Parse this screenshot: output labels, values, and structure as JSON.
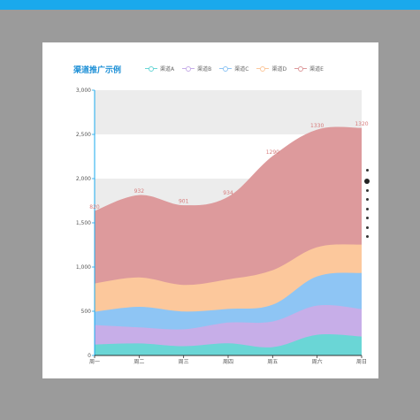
{
  "header": {
    "bar_color": "#1aa9ec"
  },
  "chart_data": {
    "type": "area",
    "stacked": true,
    "smooth": true,
    "title": "渠道推广示例",
    "categories": [
      "周一",
      "周二",
      "周三",
      "周四",
      "周五",
      "周六",
      "周日"
    ],
    "yticks": [
      "0",
      "500",
      "1,000",
      "1,500",
      "2,000",
      "2,500",
      "3,000"
    ],
    "ylim": [
      0,
      3000
    ],
    "split_area": true,
    "legend_position": "top",
    "series": [
      {
        "name": "渠道A",
        "color": "#6ad6d6",
        "values": [
          120,
          132,
          101,
          134,
          90,
          230,
          210
        ]
      },
      {
        "name": "渠道B",
        "color": "#c7aee8",
        "values": [
          220,
          182,
          191,
          234,
          290,
          330,
          310
        ]
      },
      {
        "name": "渠道C",
        "color": "#8ec5f4",
        "values": [
          150,
          232,
          201,
          154,
          190,
          330,
          410
        ]
      },
      {
        "name": "渠道D",
        "color": "#fcc89c",
        "values": [
          320,
          332,
          301,
          334,
          390,
          330,
          320
        ]
      },
      {
        "name": "渠道E",
        "color": "#dd9a9c",
        "values": [
          820,
          932,
          901,
          934,
          1290,
          1330,
          1320
        ]
      }
    ],
    "data_labels_series": "渠道E",
    "pager": {
      "pages": 8,
      "active": 1
    }
  }
}
